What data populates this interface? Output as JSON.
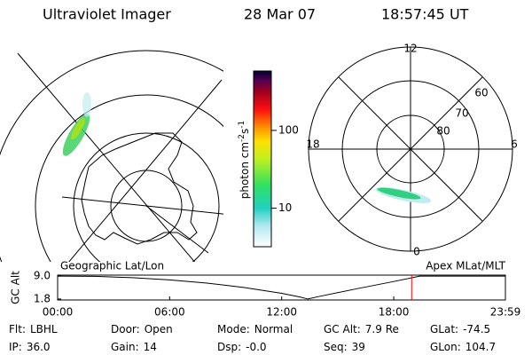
{
  "header": {
    "instrument": "Ultraviolet Imager",
    "date": "28 Mar 07",
    "time": "18:57:45 UT"
  },
  "panels": {
    "left_title": "Geographic Lat/Lon",
    "right_title": "Apex MLat/MLT"
  },
  "polar_grid": {
    "mlt_labels": [
      "12",
      "18",
      "6",
      "0"
    ],
    "mlat_labels": [
      "60",
      "70",
      "80"
    ]
  },
  "colorbar": {
    "label": [
      "photon cm",
      "-2",
      "s",
      "-1"
    ],
    "scale": "log",
    "lim": [
      3.2,
      580
    ],
    "ticks": [
      10,
      100
    ]
  },
  "chart_data": {
    "type": "line",
    "y_label": "GC Alt",
    "x": [
      0,
      2,
      4,
      6,
      8,
      10,
      12,
      13,
      13.4,
      14,
      16,
      18,
      19.4,
      22,
      23.98
    ],
    "values": [
      9.0,
      8.9,
      8.5,
      7.8,
      6.8,
      5.4,
      3.6,
      2.4,
      1.8,
      2.6,
      5.0,
      7.3,
      9.0,
      9.0,
      9.0
    ],
    "color": "#000000",
    "xlim": [
      0,
      23.98
    ],
    "xticks": [
      {
        "value": 0,
        "label": "00:00"
      },
      {
        "value": 6,
        "label": "06:00"
      },
      {
        "value": 12,
        "label": "12:00"
      },
      {
        "value": 18,
        "label": "18:00"
      },
      {
        "value": 23.98,
        "label": "23:59"
      }
    ],
    "ylim": [
      1.5,
      9.3
    ],
    "yticks": [
      {
        "value": 9.0,
        "label": "9.0"
      },
      {
        "value": 1.8,
        "label": "1.8"
      }
    ],
    "current_time": 18.96,
    "current_time_color": "#ff0000"
  },
  "info": [
    [
      {
        "label": "Flt:",
        "value": "LBHL"
      },
      {
        "label": "Door:",
        "value": "Open"
      },
      {
        "label": "Mode:",
        "value": "Normal"
      },
      {
        "label": "GC Alt:",
        "value": "7.9 Re"
      },
      {
        "label": "GLat:",
        "value": "-74.5"
      }
    ],
    [
      {
        "label": "IP:",
        "value": "36.0"
      },
      {
        "label": "Gain:",
        "value": "14"
      },
      {
        "label": "Dsp:",
        "value": "-0.0"
      },
      {
        "label": "Seq:",
        "value": "39"
      },
      {
        "label": "GLon:",
        "value": "104.7"
      }
    ]
  ]
}
